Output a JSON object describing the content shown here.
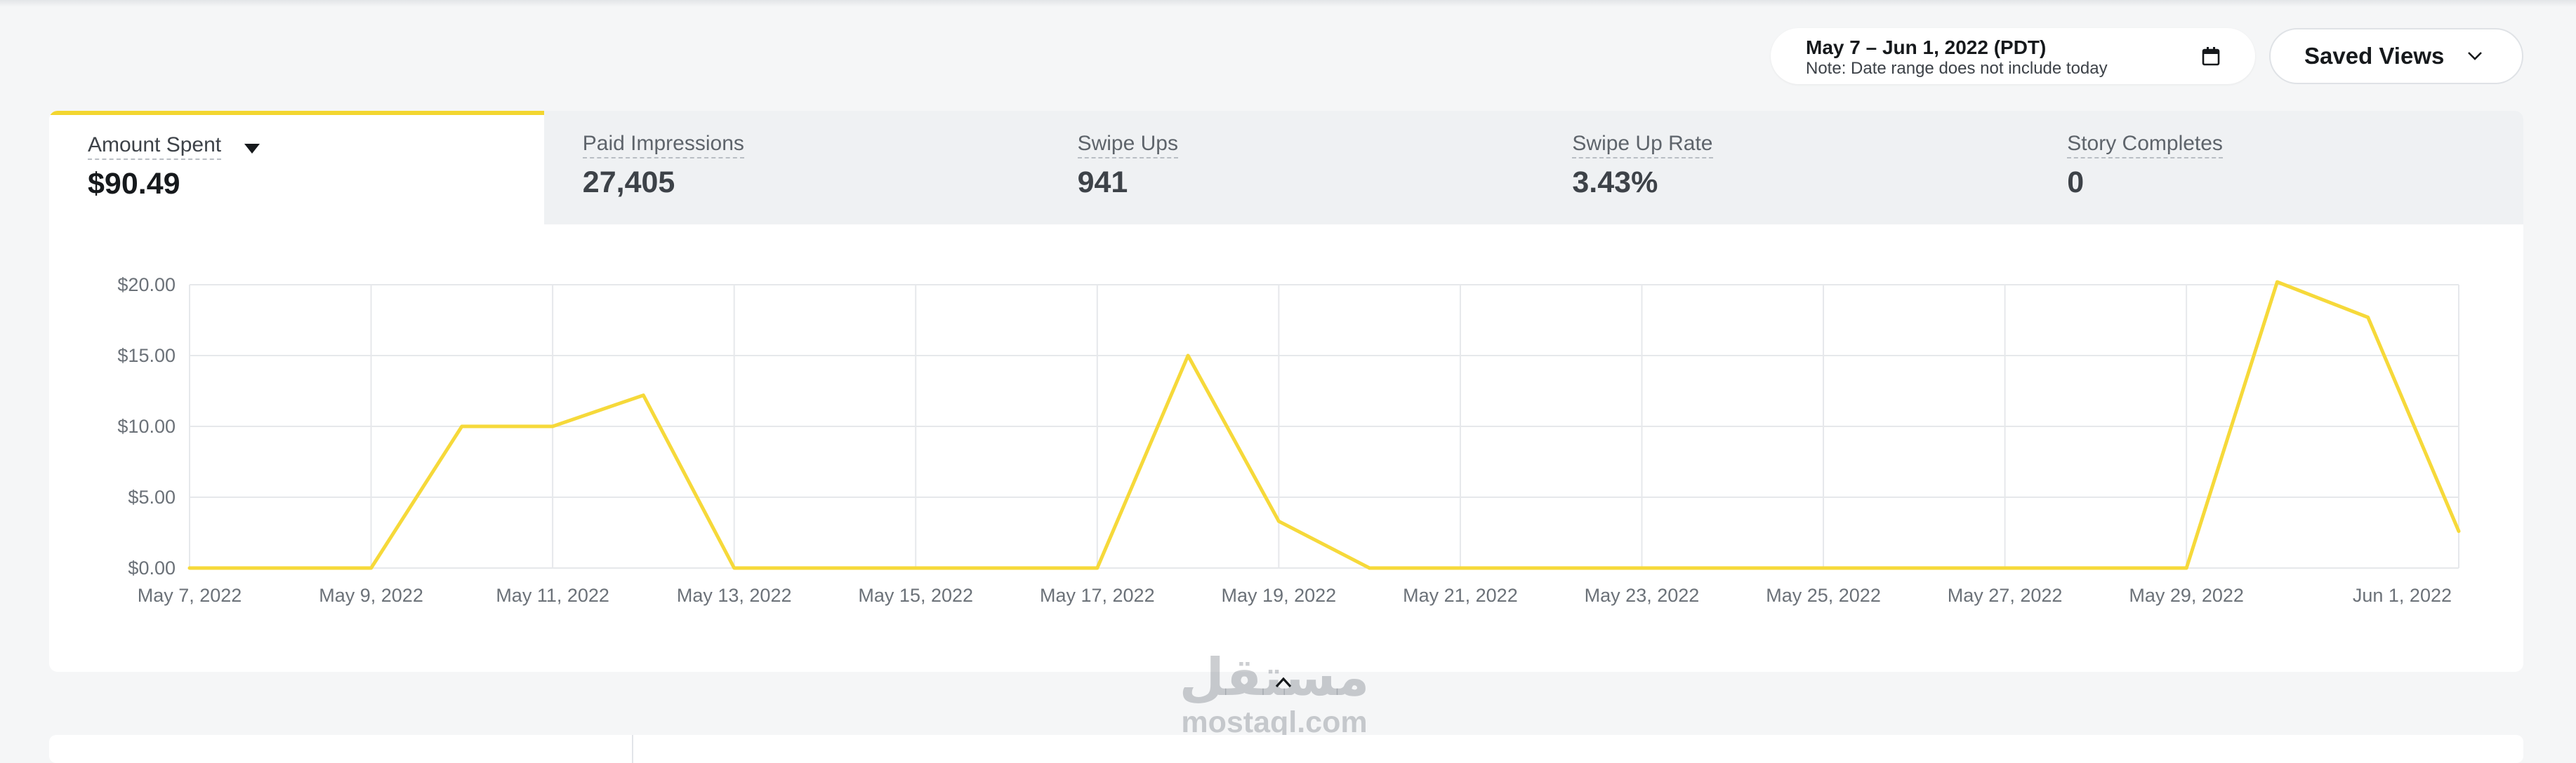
{
  "header": {
    "date_range": {
      "main": "May 7 – Jun 1, 2022 (PDT)",
      "note": "Note: Date range does not include today"
    },
    "saved_views_label": "Saved Views"
  },
  "metrics_tabs": [
    {
      "label": "Amount Spent",
      "value": "$90.49",
      "selected": true
    },
    {
      "label": "Paid Impressions",
      "value": "27,405"
    },
    {
      "label": "Swipe Ups",
      "value": "941"
    },
    {
      "label": "Swipe Up Rate",
      "value": "3.43%"
    },
    {
      "label": "Story Completes",
      "value": "0"
    }
  ],
  "colors": {
    "accent": "#f3d62f",
    "line": "#f6d93a",
    "grid": "#e6e8eb",
    "tab_inactive_bg": "#eff1f3"
  },
  "icons": {
    "date": "calendar-icon",
    "saved_views": "chevron-down-icon",
    "metric_menu": "caret-down-icon",
    "collapse": "chevron-up-icon"
  },
  "watermark": {
    "arabic": "مستقل",
    "latin": "mostaql.com"
  },
  "chart_data": {
    "type": "line",
    "x": [
      "May 7, 2022",
      "May 8, 2022",
      "May 9, 2022",
      "May 10, 2022",
      "May 11, 2022",
      "May 12, 2022",
      "May 13, 2022",
      "May 14, 2022",
      "May 15, 2022",
      "May 16, 2022",
      "May 17, 2022",
      "May 18, 2022",
      "May 19, 2022",
      "May 20, 2022",
      "May 21, 2022",
      "May 22, 2022",
      "May 23, 2022",
      "May 24, 2022",
      "May 25, 2022",
      "May 26, 2022",
      "May 27, 2022",
      "May 28, 2022",
      "May 29, 2022",
      "May 30, 2022",
      "May 31, 2022",
      "Jun 1, 2022"
    ],
    "tick_labels": [
      "May 7, 2022",
      "May 9, 2022",
      "May 11, 2022",
      "May 13, 2022",
      "May 15, 2022",
      "May 17, 2022",
      "May 19, 2022",
      "May 21, 2022",
      "May 23, 2022",
      "May 25, 2022",
      "May 27, 2022",
      "May 29, 2022",
      "Jun 1, 2022"
    ],
    "series": [
      {
        "values": [
          0,
          0,
          0,
          10.0,
          10.0,
          12.2,
          0,
          0,
          0,
          0,
          0,
          15.0,
          3.3,
          0,
          0,
          0,
          0,
          0,
          0,
          0,
          0,
          0,
          0,
          20.2,
          17.7,
          2.6
        ]
      }
    ],
    "y_ticks": [
      "$0.00",
      "$5.00",
      "$10.00",
      "$15.00",
      "$20.00"
    ],
    "ylim": [
      0,
      20
    ],
    "grid": true,
    "title": "",
    "xlabel": "",
    "ylabel": ""
  }
}
